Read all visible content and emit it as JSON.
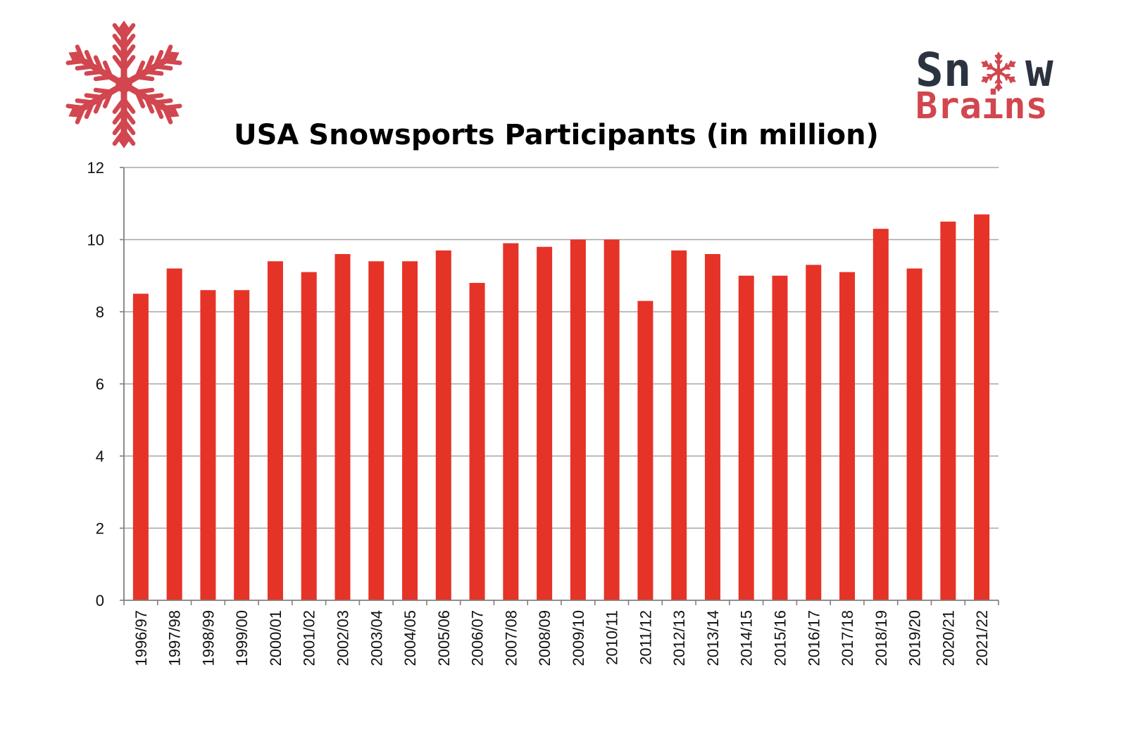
{
  "colors": {
    "bar": "#e63327",
    "brand_red": "#d2464f",
    "brand_dark": "#2c3340",
    "grid": "#a6a6a6",
    "axis": "#7f7f7f"
  },
  "logo_left": {
    "icon": "snowflake-icon"
  },
  "logo_right": {
    "line1_left": "Sn",
    "line1_right": "w",
    "line2": "Brains",
    "icon": "snowflake-icon"
  },
  "chart_data": {
    "type": "bar",
    "title": "USA Snowsports Participants (in million)",
    "xlabel": "",
    "ylabel": "",
    "ylim": [
      0,
      12
    ],
    "yticks": [
      0,
      2,
      4,
      6,
      8,
      10,
      12
    ],
    "grid": true,
    "legend": "none",
    "categories": [
      "1996/97",
      "1997/98",
      "1998/99",
      "1999/00",
      "2000/01",
      "2001/02",
      "2002/03",
      "2003/04",
      "2004/05",
      "2005/06",
      "2006/07",
      "2007/08",
      "2008/09",
      "2009/10",
      "2010/11",
      "2011/12",
      "2012/13",
      "2013/14",
      "2014/15",
      "2015/16",
      "2016/17",
      "2017/18",
      "2018/19",
      "2019/20",
      "2020/21",
      "2021/22"
    ],
    "values": [
      8.5,
      9.2,
      8.6,
      8.6,
      9.4,
      9.1,
      9.6,
      9.4,
      9.4,
      9.7,
      8.8,
      9.9,
      9.8,
      10.0,
      10.0,
      8.3,
      9.7,
      9.6,
      9.0,
      9.0,
      9.3,
      9.1,
      10.3,
      9.2,
      10.5,
      10.7
    ]
  }
}
